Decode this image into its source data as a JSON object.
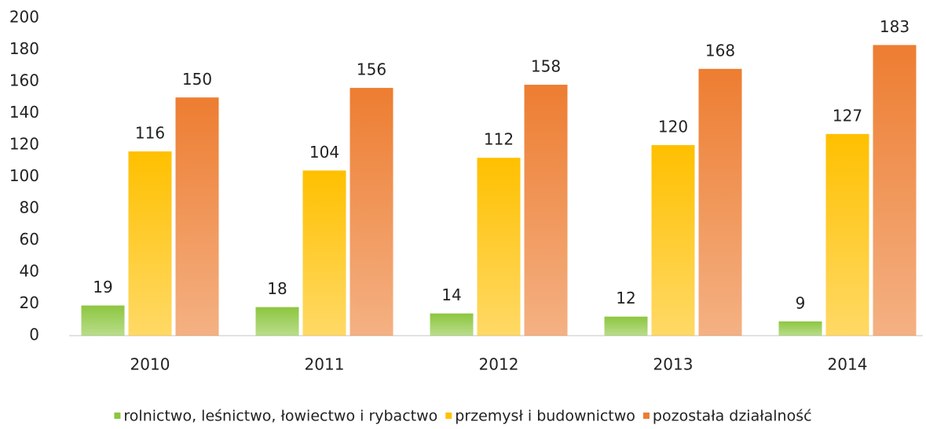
{
  "chart_data": {
    "type": "bar",
    "categories": [
      "2010",
      "2011",
      "2012",
      "2013",
      "2014"
    ],
    "series": [
      {
        "name": "rolnictwo, leśnictwo, łowiectwo i rybactwo",
        "color": "#8cc63f",
        "values": [
          19,
          18,
          14,
          12,
          9
        ]
      },
      {
        "name": "przemysł i budownictwo",
        "color": "#ffc000",
        "values": [
          116,
          104,
          112,
          120,
          127
        ]
      },
      {
        "name": "pozostała działalność",
        "color": "#ed7d31",
        "values": [
          150,
          156,
          158,
          168,
          183
        ]
      }
    ],
    "ylim": [
      0,
      200
    ],
    "yticks": [
      0,
      20,
      40,
      60,
      80,
      100,
      120,
      140,
      160,
      180,
      200
    ],
    "grid": false,
    "legend": "bottom"
  }
}
